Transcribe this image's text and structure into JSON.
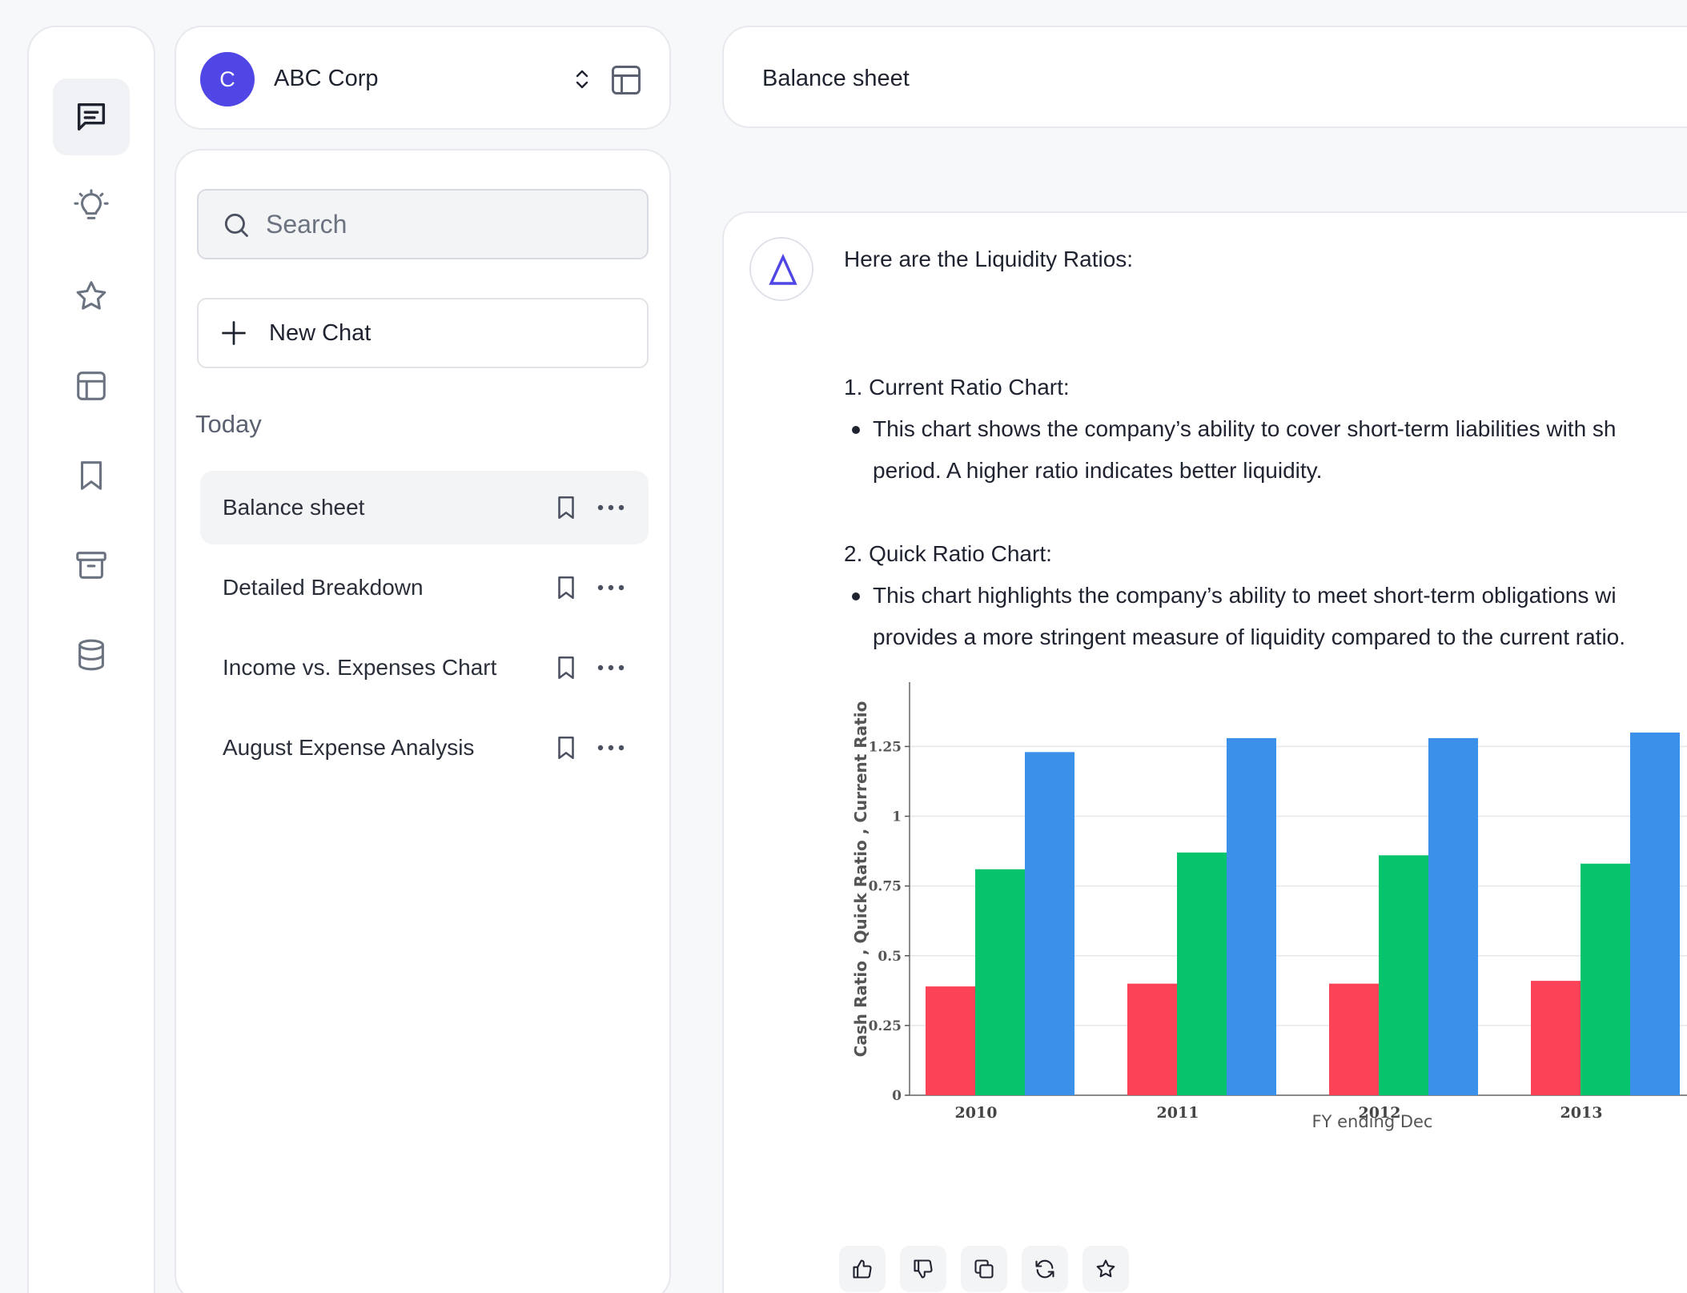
{
  "rail": {
    "items": [
      {
        "icon": "chat-icon",
        "active": true
      },
      {
        "icon": "lightbulb-icon"
      },
      {
        "icon": "star-icon"
      },
      {
        "icon": "layout-icon"
      },
      {
        "icon": "bookmark-icon"
      },
      {
        "icon": "archive-icon"
      },
      {
        "icon": "database-icon"
      }
    ]
  },
  "org": {
    "avatar_letter": "C",
    "name": "ABC Corp",
    "accent": "#4f46e5"
  },
  "sidebar": {
    "search_placeholder": "Search",
    "new_chat_label": "New Chat",
    "section_today": "Today",
    "items": [
      {
        "label": "Balance sheet",
        "active": true
      },
      {
        "label": "Detailed Breakdown"
      },
      {
        "label": "Income vs. Expenses Chart"
      },
      {
        "label": "August Expense Analysis"
      }
    ]
  },
  "thread": {
    "title": "Balance sheet"
  },
  "message": {
    "intro": "Here are the Liquidity Ratios:",
    "item1_title": "1. Current Ratio Chart:",
    "item1_line1": "This chart shows the company’s ability to cover short-term liabilities with sh",
    "item1_line2": "period. A higher ratio indicates better liquidity.",
    "item2_title": "2. Quick Ratio Chart:",
    "item2_line1": "This chart highlights the company’s ability to meet short-term obligations wi",
    "item2_line2": "provides a more stringent measure of liquidity compared to the current ratio.",
    "actions": [
      "thumbs-up-icon",
      "thumbs-down-icon",
      "copy-icon",
      "refresh-icon",
      "star-icon"
    ]
  },
  "chart_data": {
    "type": "bar",
    "categories": [
      "2010",
      "2011",
      "2012",
      "2013"
    ],
    "series": [
      {
        "values": [
          0.39,
          0.4,
          0.4,
          0.41
        ],
        "color": "#fb4257"
      },
      {
        "values": [
          0.81,
          0.87,
          0.86,
          0.83
        ],
        "color": "#06c46b"
      },
      {
        "values": [
          1.23,
          1.28,
          1.28,
          1.3
        ],
        "color": "#3b91ea"
      }
    ],
    "xlabel": "FY ending Dec",
    "ylabel": "Cash Ratio , Quick Ratio , Current Ratio",
    "yticks": [
      "0",
      "0.25",
      "0.5",
      "0.75",
      "1",
      "1.25"
    ],
    "ylim": [
      0,
      1.32
    ],
    "grid": true
  }
}
